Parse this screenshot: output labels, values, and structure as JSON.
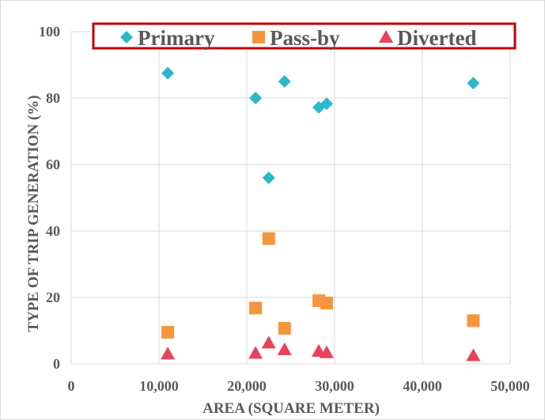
{
  "chart_data": {
    "type": "scatter",
    "title": "",
    "xlabel": "AREA (SQUARE METER)",
    "ylabel": "TYPE OF TRIP GENERATION (%)",
    "xlim": [
      0,
      50000
    ],
    "ylim": [
      0,
      100
    ],
    "x_ticks": [
      "0",
      "10,000",
      "20,000",
      "30,000",
      "40,000",
      "50,000"
    ],
    "y_ticks": [
      "0",
      "20",
      "40",
      "60",
      "80",
      "100"
    ],
    "grid": true,
    "legend_position": "top",
    "series": [
      {
        "name": "Primary",
        "marker": "diamond",
        "color": "#2ab9c9",
        "points": [
          {
            "x": 11000,
            "y": 87.5
          },
          {
            "x": 21000,
            "y": 80
          },
          {
            "x": 22500,
            "y": 56
          },
          {
            "x": 24300,
            "y": 85
          },
          {
            "x": 28200,
            "y": 77.2
          },
          {
            "x": 29100,
            "y": 78.3
          },
          {
            "x": 45800,
            "y": 84.5
          }
        ]
      },
      {
        "name": "Pass-by",
        "marker": "square",
        "color": "#f5963c",
        "points": [
          {
            "x": 11000,
            "y": 9.5
          },
          {
            "x": 21000,
            "y": 16.8
          },
          {
            "x": 22500,
            "y": 37.7
          },
          {
            "x": 24300,
            "y": 10.7
          },
          {
            "x": 28200,
            "y": 19
          },
          {
            "x": 29100,
            "y": 18.3
          },
          {
            "x": 45800,
            "y": 13
          }
        ]
      },
      {
        "name": "Diverted",
        "marker": "triangle",
        "color": "#e8435a",
        "points": [
          {
            "x": 11000,
            "y": 3
          },
          {
            "x": 21000,
            "y": 3.2
          },
          {
            "x": 22500,
            "y": 6.3
          },
          {
            "x": 24300,
            "y": 4.3
          },
          {
            "x": 28200,
            "y": 3.8
          },
          {
            "x": 29100,
            "y": 3.4
          },
          {
            "x": 45800,
            "y": 2.5
          }
        ]
      }
    ],
    "legend_border_color": "#c00000",
    "grid_color": "#d9d9d9",
    "tick_color": "#595959"
  }
}
